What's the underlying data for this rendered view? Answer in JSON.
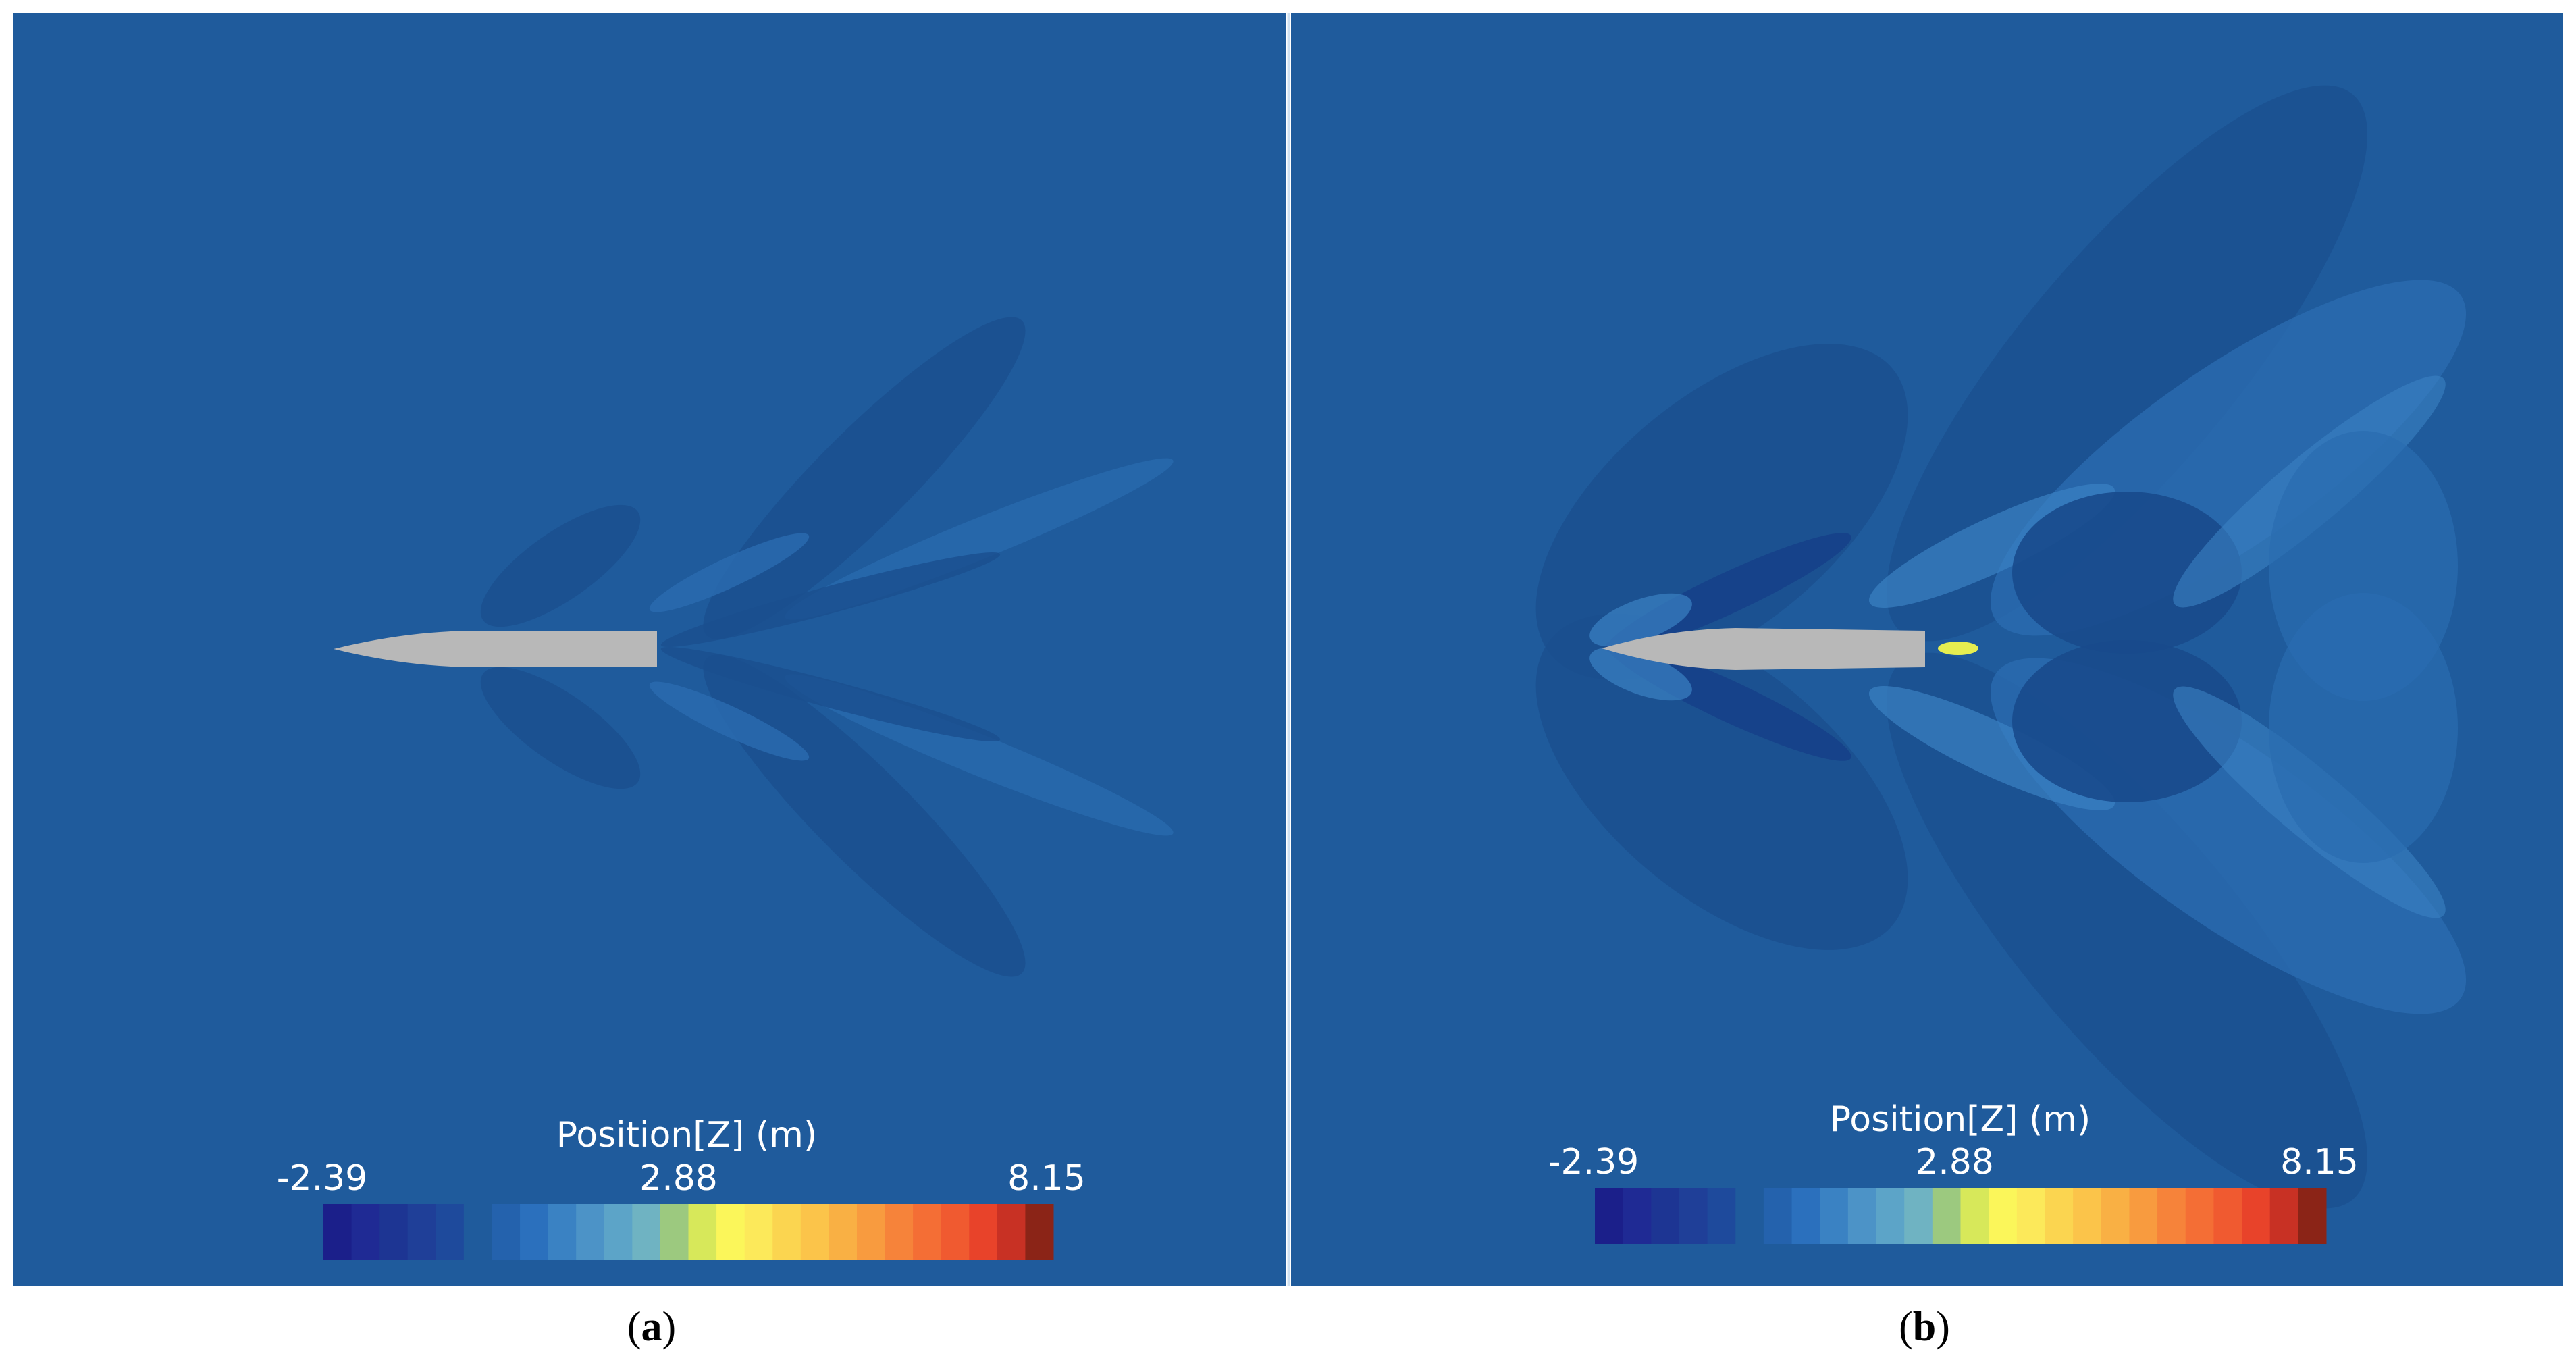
{
  "panels": [
    {
      "label": "a",
      "colorbar": {
        "title": "Position[Z] (m)",
        "ticks": [
          -2.39,
          2.88,
          8.15
        ]
      }
    },
    {
      "label": "b",
      "colorbar": {
        "title": "Position[Z] (m)",
        "ticks": [
          -2.39,
          2.88,
          8.15
        ]
      }
    }
  ]
}
